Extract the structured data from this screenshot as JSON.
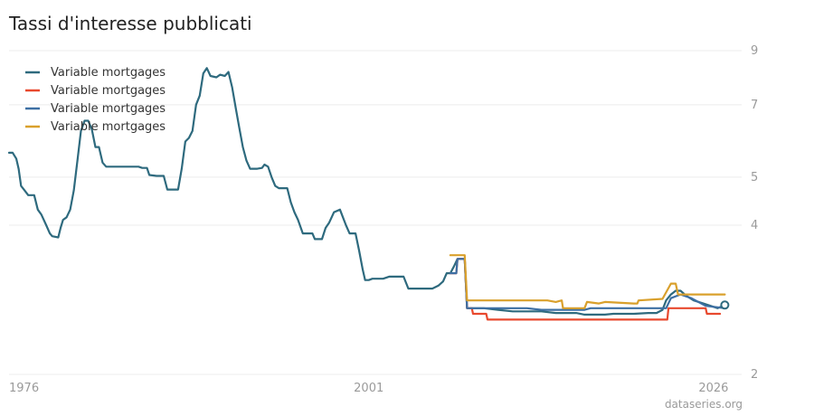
{
  "chart_data": {
    "type": "line",
    "title": "Tassi d'interesse pubblicati",
    "source": "dataseries.org",
    "xlabel": "",
    "ylabel": "",
    "grid": true,
    "legend_position": "top-left",
    "y_scale": "log",
    "ylim": [
      2,
      9
    ],
    "y_ticks": [
      2,
      4,
      5,
      7,
      9
    ],
    "xlim": [
      "1976-01",
      "2026-12"
    ],
    "x_ticks": [
      "1976",
      "2001",
      "2026"
    ],
    "series": [
      {
        "name": "Variable mortgages",
        "color": "#2e6a7e",
        "points": [
          [
            "1976-01",
            5.6
          ],
          [
            "1976-04",
            5.6
          ],
          [
            "1976-07",
            5.45
          ],
          [
            "1976-09",
            5.2
          ],
          [
            "1976-11",
            4.8
          ],
          [
            "1977-02",
            4.7
          ],
          [
            "1977-05",
            4.6
          ],
          [
            "1977-10",
            4.6
          ],
          [
            "1978-01",
            4.3
          ],
          [
            "1978-04",
            4.2
          ],
          [
            "1978-08",
            4.0
          ],
          [
            "1978-11",
            3.85
          ],
          [
            "1979-01",
            3.8
          ],
          [
            "1979-06",
            3.78
          ],
          [
            "1979-08",
            3.95
          ],
          [
            "1979-10",
            4.1
          ],
          [
            "1980-01",
            4.15
          ],
          [
            "1980-04",
            4.3
          ],
          [
            "1980-07",
            4.7
          ],
          [
            "1980-10",
            5.4
          ],
          [
            "1981-01",
            6.2
          ],
          [
            "1981-04",
            6.5
          ],
          [
            "1981-07",
            6.5
          ],
          [
            "1981-10",
            6.25
          ],
          [
            "1982-01",
            5.75
          ],
          [
            "1982-04",
            5.75
          ],
          [
            "1982-07",
            5.35
          ],
          [
            "1982-10",
            5.25
          ],
          [
            "1983-02",
            5.25
          ],
          [
            "1983-08",
            5.25
          ],
          [
            "1984-04",
            5.25
          ],
          [
            "1985-01",
            5.25
          ],
          [
            "1985-04",
            5.22
          ],
          [
            "1985-08",
            5.22
          ],
          [
            "1985-10",
            5.05
          ],
          [
            "1986-04",
            5.03
          ],
          [
            "1986-10",
            5.03
          ],
          [
            "1987-01",
            4.72
          ],
          [
            "1987-06",
            4.72
          ],
          [
            "1987-10",
            4.72
          ],
          [
            "1988-01",
            5.2
          ],
          [
            "1988-04",
            5.9
          ],
          [
            "1988-07",
            6.0
          ],
          [
            "1988-10",
            6.2
          ],
          [
            "1989-01",
            7.0
          ],
          [
            "1989-04",
            7.3
          ],
          [
            "1989-07",
            8.1
          ],
          [
            "1989-10",
            8.3
          ],
          [
            "1990-01",
            8.0
          ],
          [
            "1990-06",
            7.95
          ],
          [
            "1990-09",
            8.05
          ],
          [
            "1991-01",
            8.0
          ],
          [
            "1991-04",
            8.15
          ],
          [
            "1991-07",
            7.6
          ],
          [
            "1991-10",
            6.9
          ],
          [
            "1992-01",
            6.3
          ],
          [
            "1992-04",
            5.75
          ],
          [
            "1992-07",
            5.4
          ],
          [
            "1992-10",
            5.2
          ],
          [
            "1993-01",
            5.2
          ],
          [
            "1993-04",
            5.2
          ],
          [
            "1993-08",
            5.22
          ],
          [
            "1993-10",
            5.3
          ],
          [
            "1994-01",
            5.25
          ],
          [
            "1994-04",
            5.0
          ],
          [
            "1994-07",
            4.8
          ],
          [
            "1994-10",
            4.75
          ],
          [
            "1995-02",
            4.75
          ],
          [
            "1995-05",
            4.75
          ],
          [
            "1995-08",
            4.45
          ],
          [
            "1995-11",
            4.25
          ],
          [
            "1996-02",
            4.1
          ],
          [
            "1996-06",
            3.85
          ],
          [
            "1996-10",
            3.85
          ],
          [
            "1997-02",
            3.85
          ],
          [
            "1997-04",
            3.75
          ],
          [
            "1997-10",
            3.75
          ],
          [
            "1998-01",
            3.95
          ],
          [
            "1998-04",
            4.05
          ],
          [
            "1998-08",
            4.25
          ],
          [
            "1999-01",
            4.3
          ],
          [
            "1999-06",
            4.0
          ],
          [
            "1999-09",
            3.85
          ],
          [
            "2000-02",
            3.85
          ],
          [
            "2000-05",
            3.55
          ],
          [
            "2000-08",
            3.25
          ],
          [
            "2000-10",
            3.1
          ],
          [
            "2001-01",
            3.1
          ],
          [
            "2001-04",
            3.12
          ],
          [
            "2002-01",
            3.12
          ],
          [
            "2002-06",
            3.15
          ],
          [
            "2003-06",
            3.15
          ],
          [
            "2003-10",
            2.98
          ],
          [
            "2004-06",
            2.98
          ],
          [
            "2005-06",
            2.98
          ],
          [
            "2005-11",
            3.02
          ],
          [
            "2006-03",
            3.08
          ],
          [
            "2006-06",
            3.2
          ],
          [
            "2006-09",
            3.2
          ],
          [
            "2006-12",
            3.3
          ],
          [
            "2007-03",
            3.42
          ],
          [
            "2007-09",
            3.42
          ],
          [
            "2007-11",
            2.72
          ],
          [
            "2008-03",
            2.72
          ],
          [
            "2009-01",
            2.72
          ],
          [
            "2010-01",
            2.7
          ],
          [
            "2011-01",
            2.68
          ],
          [
            "2012-01",
            2.68
          ],
          [
            "2013-01",
            2.68
          ],
          [
            "2014-01",
            2.66
          ],
          [
            "2015-06",
            2.66
          ],
          [
            "2016-01",
            2.64
          ],
          [
            "2017-06",
            2.64
          ],
          [
            "2018-01",
            2.65
          ],
          [
            "2019-06",
            2.65
          ],
          [
            "2020-06",
            2.66
          ],
          [
            "2021-01",
            2.66
          ],
          [
            "2021-06",
            2.7
          ],
          [
            "2021-09",
            2.82
          ],
          [
            "2022-01",
            2.9
          ],
          [
            "2022-05",
            2.95
          ],
          [
            "2022-09",
            2.95
          ],
          [
            "2023-02",
            2.88
          ],
          [
            "2023-08",
            2.82
          ],
          [
            "2024-04",
            2.78
          ],
          [
            "2025-04",
            2.72
          ],
          [
            "2025-10",
            2.76
          ]
        ]
      },
      {
        "name": "Variable mortgages",
        "color": "#e8492e",
        "points": [
          [
            "2006-09",
            3.2
          ],
          [
            "2007-02",
            3.2
          ],
          [
            "2007-03",
            3.42
          ],
          [
            "2007-09",
            3.42
          ],
          [
            "2007-11",
            2.72
          ],
          [
            "2008-03",
            2.72
          ],
          [
            "2008-04",
            2.65
          ],
          [
            "2009-03",
            2.65
          ],
          [
            "2009-04",
            2.58
          ],
          [
            "2012-06",
            2.58
          ],
          [
            "2016-01",
            2.58
          ],
          [
            "2020-01",
            2.58
          ],
          [
            "2021-10",
            2.58
          ],
          [
            "2021-11",
            2.72
          ],
          [
            "2024-06",
            2.72
          ],
          [
            "2024-07",
            2.65
          ],
          [
            "2025-06",
            2.65
          ]
        ]
      },
      {
        "name": "Variable mortgages",
        "color": "#3d6fa3",
        "points": [
          [
            "2006-09",
            3.2
          ],
          [
            "2007-02",
            3.2
          ],
          [
            "2007-03",
            3.42
          ],
          [
            "2007-09",
            3.42
          ],
          [
            "2007-11",
            2.72
          ],
          [
            "2012-01",
            2.72
          ],
          [
            "2013-01",
            2.7
          ],
          [
            "2016-01",
            2.7
          ],
          [
            "2016-06",
            2.72
          ],
          [
            "2021-09",
            2.72
          ],
          [
            "2022-01",
            2.85
          ],
          [
            "2022-09",
            2.9
          ],
          [
            "2023-06",
            2.85
          ],
          [
            "2024-06",
            2.75
          ],
          [
            "2025-10",
            2.72
          ]
        ]
      },
      {
        "name": "Variable mortgages",
        "color": "#d9a02c",
        "points": [
          [
            "2006-09",
            3.48
          ],
          [
            "2007-09",
            3.48
          ],
          [
            "2007-11",
            2.82
          ],
          [
            "2010-01",
            2.82
          ],
          [
            "2013-06",
            2.82
          ],
          [
            "2014-01",
            2.8
          ],
          [
            "2014-06",
            2.82
          ],
          [
            "2014-07",
            2.72
          ],
          [
            "2016-01",
            2.72
          ],
          [
            "2016-03",
            2.8
          ],
          [
            "2017-01",
            2.78
          ],
          [
            "2017-06",
            2.8
          ],
          [
            "2019-06",
            2.78
          ],
          [
            "2019-09",
            2.78
          ],
          [
            "2019-10",
            2.82
          ],
          [
            "2021-06",
            2.84
          ],
          [
            "2022-01",
            3.05
          ],
          [
            "2022-05",
            3.05
          ],
          [
            "2022-07",
            2.9
          ],
          [
            "2025-10",
            2.9
          ]
        ]
      }
    ]
  }
}
